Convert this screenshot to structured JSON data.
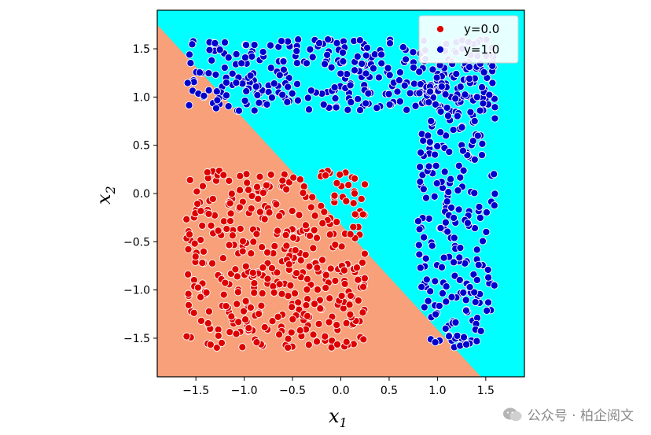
{
  "chart_data": {
    "type": "scatter",
    "title": "",
    "xlabel": "x",
    "xlabel_sub": "1",
    "ylabel": "x",
    "ylabel_sub": "2",
    "xlim": [
      -1.9,
      1.9
    ],
    "ylim": [
      -1.9,
      1.9
    ],
    "xticks": [
      -1.5,
      -1.0,
      -0.5,
      0.0,
      0.5,
      1.0,
      1.5
    ],
    "yticks": [
      -1.5,
      -1.0,
      -0.5,
      0.0,
      0.5,
      1.0,
      1.5
    ],
    "xtick_labels": [
      "−1.5",
      "−1.0",
      "−0.5",
      "0.0",
      "0.5",
      "1.0",
      "1.5"
    ],
    "ytick_labels": [
      "−1.5",
      "−1.0",
      "−0.5",
      "0.0",
      "0.5",
      "1.0",
      "1.5"
    ],
    "grid": false,
    "legend_position": "top-right",
    "decision_boundary": {
      "description_points": [
        [
          -1.9,
          1.75
        ],
        [
          1.45,
          -1.9
        ]
      ],
      "region_colors": {
        "0.0": "#f7a07a",
        "1.0": "#00ffff"
      }
    },
    "series": [
      {
        "name": "y=0.0",
        "color": "#dd0000",
        "clusters": [
          {
            "x_range": [
              -1.6,
              0.25
            ],
            "y_range": [
              -1.6,
              0.25
            ],
            "count": 420
          }
        ]
      },
      {
        "name": "y=1.0",
        "color": "#0000cc",
        "clusters": [
          {
            "x_range": [
              -1.6,
              1.6
            ],
            "y_range": [
              0.85,
              1.6
            ],
            "count": 330
          },
          {
            "x_range": [
              0.8,
              1.6
            ],
            "y_range": [
              -1.6,
              1.35
            ],
            "count": 260
          }
        ]
      }
    ]
  },
  "watermark": {
    "text": "公众号 · 柏企阅文"
  },
  "icons": {
    "watermark_icon": "wechat-icon"
  }
}
